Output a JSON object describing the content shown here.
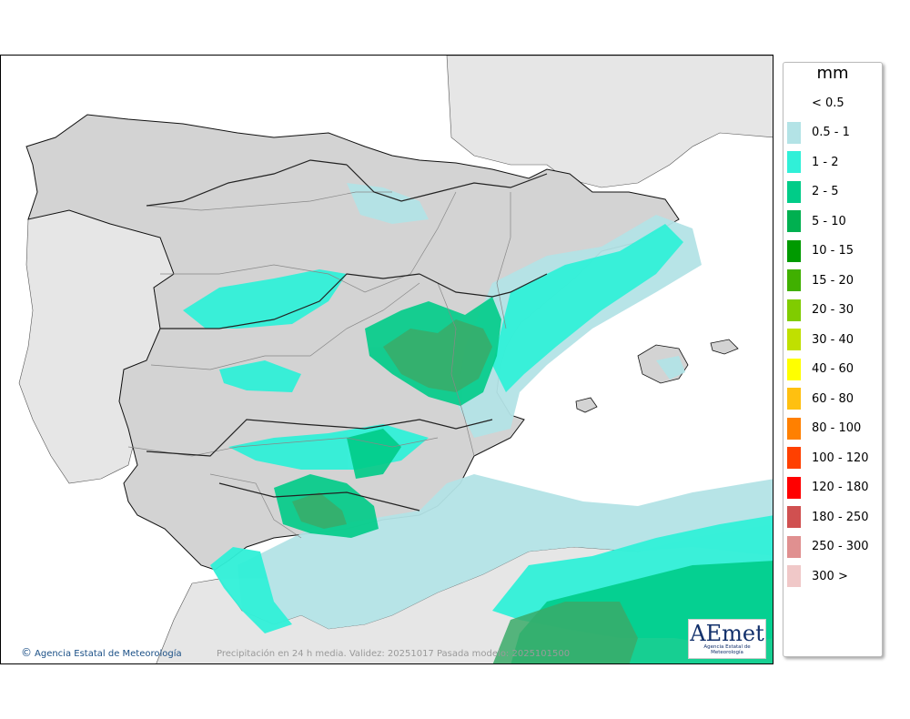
{
  "map": {
    "credit": "Agencia Estatal de Meteorología",
    "caption": "Precipitación en 24 h media. Validez: 20251017 Pasada modelo: 2025101500",
    "logo_text": "AEmet",
    "logo_subtitle": "Agencia Estatal de Meteorología",
    "credit_icon": "copyright-icon"
  },
  "legend": {
    "unit": "mm",
    "items": [
      {
        "label": "< 0.5",
        "color": "#ffffff"
      },
      {
        "label": "0.5 - 1",
        "color": "#b3e3e6"
      },
      {
        "label": "1 - 2",
        "color": "#30f0d8"
      },
      {
        "label": "2 - 5",
        "color": "#00cc88"
      },
      {
        "label": "5 - 10",
        "color": "#00b050"
      },
      {
        "label": "10 - 15",
        "color": "#009a00"
      },
      {
        "label": "15 - 20",
        "color": "#40b000"
      },
      {
        "label": "20 - 30",
        "color": "#80cc00"
      },
      {
        "label": "30 - 40",
        "color": "#c0e000"
      },
      {
        "label": "40 - 60",
        "color": "#ffff00"
      },
      {
        "label": "60 - 80",
        "color": "#ffc010"
      },
      {
        "label": "80 - 100",
        "color": "#ff8000"
      },
      {
        "label": "100 - 120",
        "color": "#ff4000"
      },
      {
        "label": "120 - 180",
        "color": "#ff0000"
      },
      {
        "label": "180 - 250",
        "color": "#d05050"
      },
      {
        "label": "250 - 300",
        "color": "#e09090"
      },
      {
        "label": "300 >",
        "color": "#f0c8c8"
      }
    ]
  },
  "colors": {
    "sea": "#ffffff",
    "land": "#e5e5e5",
    "relief": "#cfcfcf"
  }
}
